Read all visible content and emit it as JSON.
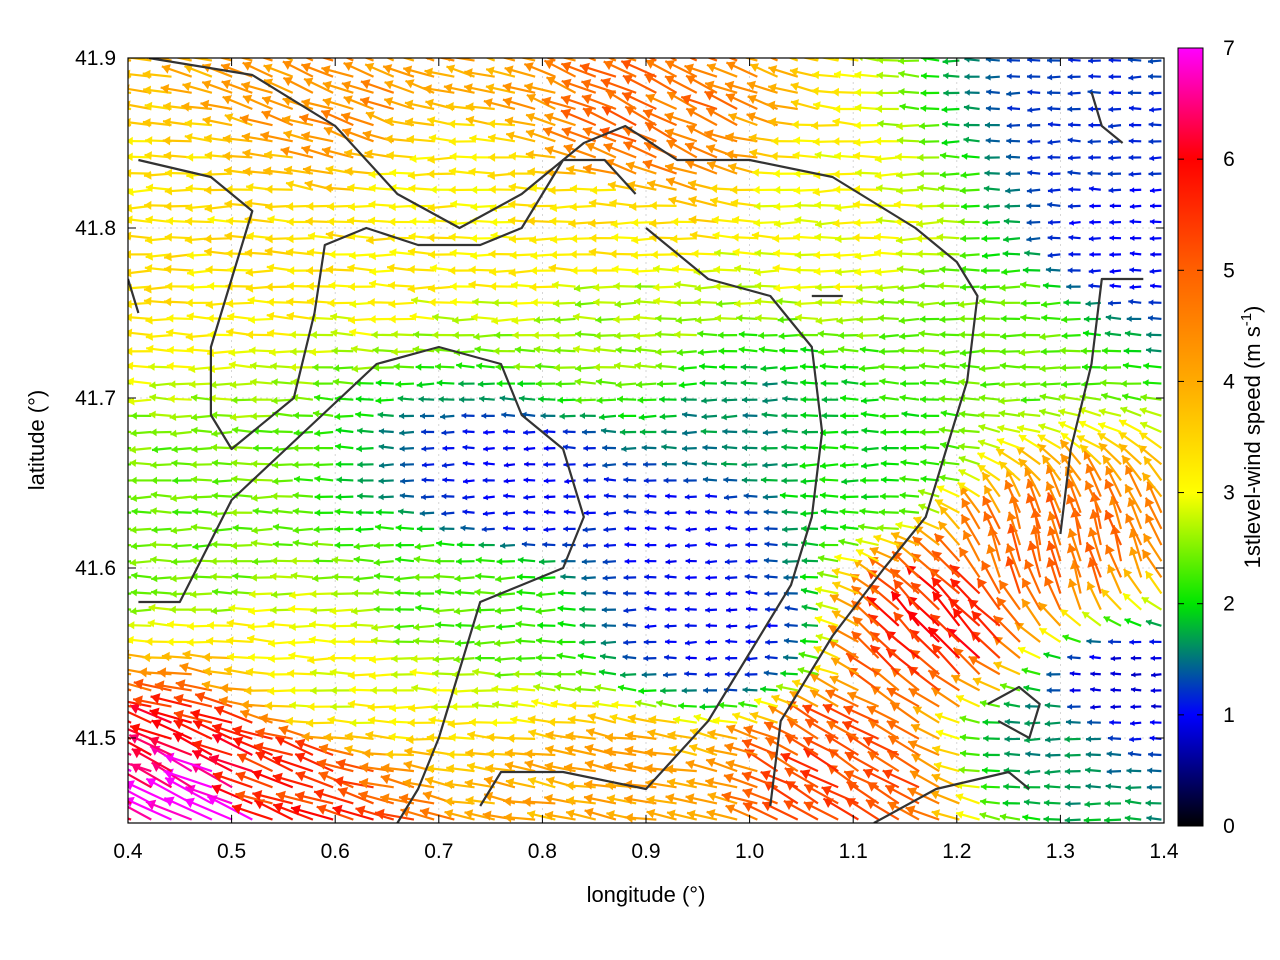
{
  "chart_data": {
    "type": "vector-field",
    "title": "",
    "xlabel": "longitude (°)",
    "ylabel": "latitude (°)",
    "xlim": [
      0.4,
      1.4
    ],
    "ylim": [
      41.45,
      41.9
    ],
    "xticks": [
      {
        "value": 0.4,
        "label": "0.4"
      },
      {
        "value": 0.5,
        "label": "0.5"
      },
      {
        "value": 0.6,
        "label": "0.6"
      },
      {
        "value": 0.7,
        "label": "0.7"
      },
      {
        "value": 0.8,
        "label": "0.8"
      },
      {
        "value": 0.9,
        "label": "0.9"
      },
      {
        "value": 1.0,
        "label": "1.0"
      },
      {
        "value": 1.1,
        "label": "1.1"
      },
      {
        "value": 1.2,
        "label": "1.2"
      },
      {
        "value": 1.3,
        "label": "1.3"
      },
      {
        "value": 1.4,
        "label": "1.4"
      }
    ],
    "yticks": [
      {
        "value": 41.5,
        "label": "41.5"
      },
      {
        "value": 41.6,
        "label": "41.6"
      },
      {
        "value": 41.7,
        "label": "41.7"
      },
      {
        "value": 41.8,
        "label": "41.8"
      },
      {
        "value": 41.9,
        "label": "41.9"
      }
    ],
    "colorbar": {
      "label": "1stlevel-wind speed (m s",
      "label_sup": "-1",
      "label_end": ")",
      "range": [
        0,
        7
      ],
      "ticks": [
        {
          "value": 0,
          "label": "0"
        },
        {
          "value": 1,
          "label": "1"
        },
        {
          "value": 2,
          "label": "2"
        },
        {
          "value": 3,
          "label": "3"
        },
        {
          "value": 4,
          "label": "4"
        },
        {
          "value": 5,
          "label": "5"
        },
        {
          "value": 6,
          "label": "6"
        },
        {
          "value": 7,
          "label": "7"
        }
      ],
      "stops": [
        {
          "value": 0,
          "color": "#000000"
        },
        {
          "value": 1,
          "color": "#0000ff"
        },
        {
          "value": 2,
          "color": "#00e600"
        },
        {
          "value": 3,
          "color": "#ffff00"
        },
        {
          "value": 4,
          "color": "#ffaa00"
        },
        {
          "value": 5,
          "color": "#ff6000"
        },
        {
          "value": 6,
          "color": "#ff0000"
        },
        {
          "value": 7,
          "color": "#ff00ff"
        }
      ]
    },
    "grid": true,
    "vector_grid": {
      "x_start": 0.403,
      "x_step": 0.0195,
      "y_start": 41.452,
      "y_step": 0.0095
    },
    "wind_regions": [
      {
        "lon": 0.45,
        "lat": 41.8,
        "speed": 3.3,
        "dir_deg": 0
      },
      {
        "lon": 0.45,
        "lat": 41.62,
        "speed": 2.4,
        "dir_deg": 0
      },
      {
        "lon": 0.62,
        "lat": 41.88,
        "speed": 4.3,
        "dir_deg": -20
      },
      {
        "lon": 0.72,
        "lat": 41.82,
        "speed": 3.2,
        "dir_deg": 0
      },
      {
        "lon": 0.85,
        "lat": 41.8,
        "speed": 3.3,
        "dir_deg": 0
      },
      {
        "lon": 0.9,
        "lat": 41.86,
        "speed": 4.8,
        "dir_deg": -25
      },
      {
        "lon": 0.88,
        "lat": 41.74,
        "speed": 2.6,
        "dir_deg": 0
      },
      {
        "lon": 0.78,
        "lat": 41.65,
        "speed": 1.0,
        "dir_deg": 0
      },
      {
        "lon": 0.72,
        "lat": 41.58,
        "speed": 2.3,
        "dir_deg": 0
      },
      {
        "lon": 0.95,
        "lat": 41.62,
        "speed": 1.0,
        "dir_deg": 0
      },
      {
        "lon": 1.0,
        "lat": 41.68,
        "speed": 1.6,
        "dir_deg": 0
      },
      {
        "lon": 1.1,
        "lat": 41.8,
        "speed": 3.0,
        "dir_deg": 0
      },
      {
        "lon": 1.25,
        "lat": 41.74,
        "speed": 2.4,
        "dir_deg": 0
      },
      {
        "lon": 1.35,
        "lat": 41.86,
        "speed": 1.2,
        "dir_deg": 0
      },
      {
        "lon": 1.37,
        "lat": 41.79,
        "speed": 1.0,
        "dir_deg": 0
      },
      {
        "lon": 1.1,
        "lat": 41.66,
        "speed": 2.0,
        "dir_deg": 0
      },
      {
        "lon": 1.2,
        "lat": 41.56,
        "speed": 5.7,
        "dir_deg": -45
      },
      {
        "lon": 1.3,
        "lat": 41.6,
        "speed": 4.8,
        "dir_deg": -75
      },
      {
        "lon": 1.1,
        "lat": 41.48,
        "speed": 5.2,
        "dir_deg": -30
      },
      {
        "lon": 0.9,
        "lat": 41.47,
        "speed": 4.0,
        "dir_deg": -10
      },
      {
        "lon": 0.55,
        "lat": 41.47,
        "speed": 5.5,
        "dir_deg": -20
      },
      {
        "lon": 0.49,
        "lat": 41.46,
        "speed": 7.0,
        "dir_deg": -25
      },
      {
        "lon": 0.62,
        "lat": 41.53,
        "speed": 3.0,
        "dir_deg": 0
      },
      {
        "lon": 0.98,
        "lat": 41.56,
        "speed": 1.0,
        "dir_deg": 0
      },
      {
        "lon": 1.3,
        "lat": 41.5,
        "speed": 1.6,
        "dir_deg": 0
      },
      {
        "lon": 1.36,
        "lat": 41.53,
        "speed": 0.8,
        "dir_deg": 0
      }
    ],
    "contours": [
      [
        [
          0.42,
          41.9
        ],
        [
          0.52,
          41.89
        ],
        [
          0.6,
          41.86
        ],
        [
          0.66,
          41.82
        ],
        [
          0.72,
          41.8
        ],
        [
          0.78,
          41.82
        ],
        [
          0.84,
          41.85
        ],
        [
          0.88,
          41.86
        ],
        [
          0.93,
          41.84
        ],
        [
          1.0,
          41.84
        ],
        [
          1.08,
          41.83
        ],
        [
          1.16,
          41.8
        ],
        [
          1.2,
          41.78
        ],
        [
          1.22,
          41.76
        ],
        [
          1.21,
          41.71
        ],
        [
          1.19,
          41.67
        ],
        [
          1.17,
          41.63
        ],
        [
          1.13,
          41.6
        ],
        [
          1.08,
          41.56
        ],
        [
          1.03,
          41.51
        ],
        [
          1.02,
          41.46
        ]
      ],
      [
        [
          0.41,
          41.84
        ],
        [
          0.48,
          41.83
        ],
        [
          0.52,
          41.81
        ],
        [
          0.5,
          41.77
        ],
        [
          0.48,
          41.73
        ],
        [
          0.48,
          41.69
        ],
        [
          0.5,
          41.67
        ],
        [
          0.56,
          41.7
        ],
        [
          0.58,
          41.75
        ],
        [
          0.59,
          41.79
        ],
        [
          0.63,
          41.8
        ],
        [
          0.68,
          41.79
        ],
        [
          0.74,
          41.79
        ],
        [
          0.78,
          41.8
        ],
        [
          0.82,
          41.84
        ],
        [
          0.86,
          41.84
        ],
        [
          0.89,
          41.82
        ]
      ],
      [
        [
          0.41,
          41.58
        ],
        [
          0.45,
          41.58
        ],
        [
          0.5,
          41.64
        ],
        [
          0.57,
          41.68
        ],
        [
          0.64,
          41.72
        ],
        [
          0.7,
          41.73
        ],
        [
          0.76,
          41.72
        ],
        [
          0.78,
          41.69
        ],
        [
          0.82,
          41.67
        ],
        [
          0.84,
          41.63
        ],
        [
          0.82,
          41.6
        ],
        [
          0.78,
          41.59
        ],
        [
          0.74,
          41.58
        ],
        [
          0.72,
          41.54
        ],
        [
          0.7,
          41.5
        ],
        [
          0.68,
          41.47
        ],
        [
          0.66,
          41.45
        ]
      ],
      [
        [
          0.74,
          41.46
        ],
        [
          0.76,
          41.48
        ],
        [
          0.82,
          41.48
        ],
        [
          0.9,
          41.47
        ],
        [
          0.96,
          41.51
        ],
        [
          1.0,
          41.55
        ],
        [
          1.04,
          41.59
        ],
        [
          1.06,
          41.63
        ],
        [
          1.07,
          41.68
        ],
        [
          1.06,
          41.73
        ],
        [
          1.02,
          41.76
        ],
        [
          0.96,
          41.77
        ],
        [
          0.9,
          41.8
        ]
      ],
      [
        [
          1.12,
          41.45
        ],
        [
          1.18,
          41.47
        ],
        [
          1.25,
          41.48
        ],
        [
          1.27,
          41.47
        ]
      ],
      [
        [
          1.23,
          41.52
        ],
        [
          1.26,
          41.53
        ],
        [
          1.28,
          41.52
        ],
        [
          1.27,
          41.5
        ],
        [
          1.24,
          41.51
        ]
      ],
      [
        [
          1.3,
          41.62
        ],
        [
          1.31,
          41.67
        ],
        [
          1.33,
          41.72
        ],
        [
          1.34,
          41.77
        ],
        [
          1.38,
          41.77
        ]
      ],
      [
        [
          1.33,
          41.88
        ],
        [
          1.34,
          41.86
        ],
        [
          1.36,
          41.85
        ]
      ],
      [
        [
          0.4,
          41.77
        ],
        [
          0.41,
          41.75
        ]
      ],
      [
        [
          1.06,
          41.76
        ],
        [
          1.09,
          41.76
        ]
      ]
    ]
  }
}
